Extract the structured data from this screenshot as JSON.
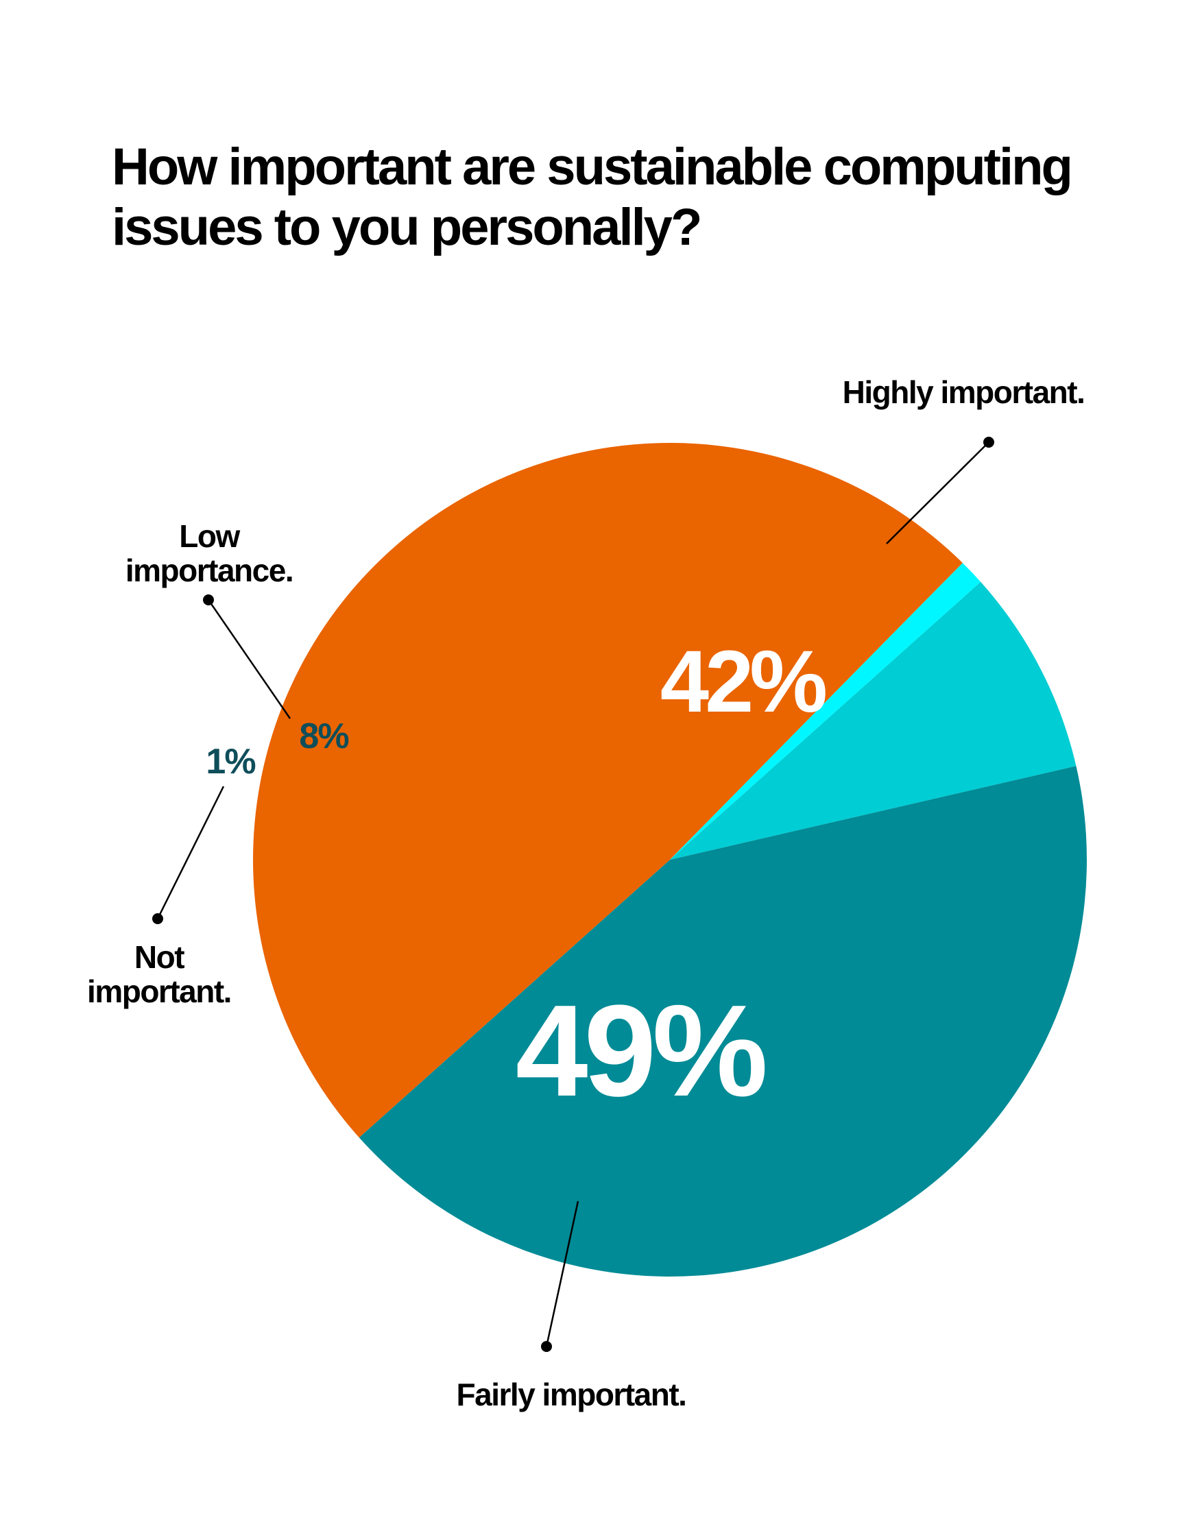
{
  "chart_data": {
    "type": "pie",
    "title": "How important are sustainable computing issues to you personally?",
    "slices": [
      {
        "label_line1": "Highly important.",
        "label_line2": "",
        "value": 42,
        "value_label": "42%",
        "color": "#018B96"
      },
      {
        "label_line1": "Fairly important.",
        "label_line2": "",
        "value": 49,
        "value_label": "49%",
        "color": "#EA6400"
      },
      {
        "label_line1": "Not",
        "label_line2": "important.",
        "value": 1,
        "value_label": "1%",
        "color": "#00F7FF"
      },
      {
        "label_line1": "Low",
        "label_line2": "importance.",
        "value": 8,
        "value_label": "8%",
        "color": "#00CDD4"
      }
    ],
    "legend": "callouts",
    "colors": {
      "leader_line": "#000000",
      "small_value_text": "#0E4E5A",
      "big_value_text": "#FFFFFF"
    }
  }
}
